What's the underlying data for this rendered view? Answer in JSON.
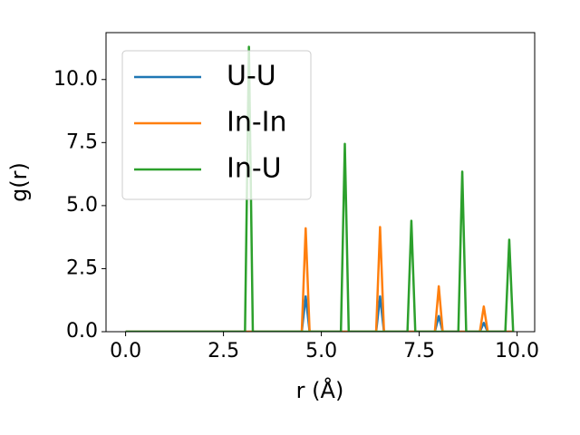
{
  "chart_data": {
    "type": "line",
    "xlabel": "r (Å)",
    "ylabel": "g(r)",
    "x": [
      0,
      3.05,
      3.15,
      3.25,
      4.5,
      4.6,
      4.7,
      5.5,
      5.6,
      5.7,
      6.4,
      6.5,
      6.6,
      7.2,
      7.3,
      7.4,
      7.9,
      8.0,
      8.1,
      8.5,
      8.6,
      8.7,
      9.05,
      9.15,
      9.25,
      9.7,
      9.8,
      9.9
    ],
    "series": [
      {
        "name": "U-U",
        "color": "#1f77b4",
        "values": [
          0,
          0,
          0,
          0,
          0,
          1.4,
          0,
          0,
          0,
          0,
          0,
          1.4,
          0,
          0,
          0,
          0,
          0,
          0.62,
          0,
          0,
          0,
          0,
          0,
          0.35,
          0,
          0,
          0,
          0
        ]
      },
      {
        "name": "In-In",
        "color": "#ff7f0e",
        "values": [
          0,
          0,
          0,
          0,
          0,
          4.1,
          0,
          0,
          0,
          0,
          0,
          4.15,
          0,
          0,
          0,
          0,
          0,
          1.8,
          0,
          0,
          0,
          0,
          0,
          1.0,
          0,
          0,
          0,
          0
        ]
      },
      {
        "name": "In-U",
        "color": "#2ca02c",
        "values": [
          0,
          0,
          11.3,
          0,
          0,
          0,
          0,
          0,
          7.45,
          0,
          0,
          0,
          0,
          0,
          4.4,
          0,
          0,
          0,
          0,
          0,
          6.35,
          0,
          0,
          0,
          0,
          0,
          3.65,
          0
        ]
      }
    ],
    "xlim": [
      -0.5,
      10.45
    ],
    "ylim": [
      0,
      11.86
    ],
    "xticks": [
      {
        "value": 0,
        "label": "0.0"
      },
      {
        "value": 2.5,
        "label": "2.5"
      },
      {
        "value": 5,
        "label": "5.0"
      },
      {
        "value": 7.5,
        "label": "7.5"
      },
      {
        "value": 10,
        "label": "10.0"
      }
    ],
    "yticks": [
      {
        "value": 0,
        "label": "0.0"
      },
      {
        "value": 2.5,
        "label": "2.5"
      },
      {
        "value": 5,
        "label": "5.0"
      },
      {
        "value": 7.5,
        "label": "7.5"
      },
      {
        "value": 10,
        "label": "10.0"
      }
    ],
    "legend": "upper left",
    "grid": false
  }
}
